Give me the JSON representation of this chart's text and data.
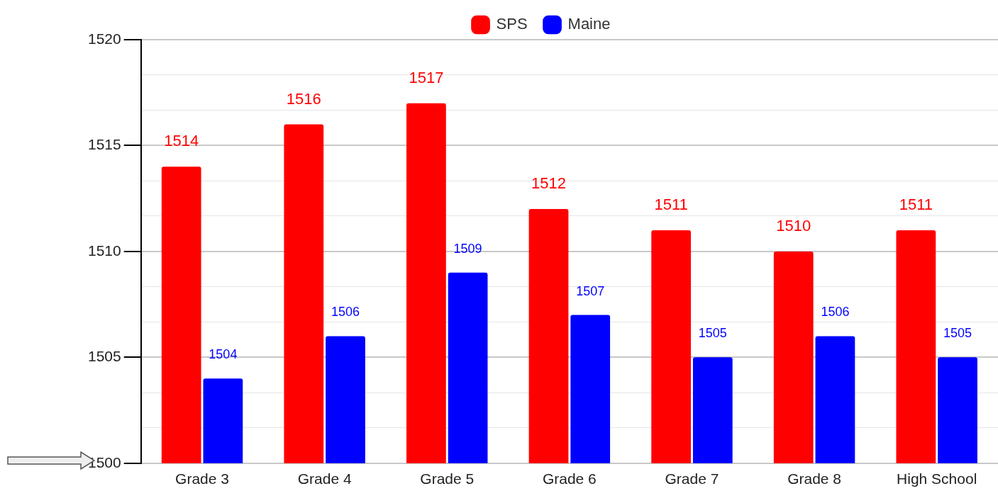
{
  "chart_data": {
    "type": "bar",
    "categories": [
      "Grade 3",
      "Grade 4",
      "Grade 5",
      "Grade 6",
      "Grade 7",
      "Grade 8",
      "High School"
    ],
    "series": [
      {
        "name": "SPS",
        "color": "#ff0000",
        "values": [
          1514,
          1516,
          1517,
          1512,
          1511,
          1510,
          1511
        ]
      },
      {
        "name": "Maine",
        "color": "#0000ff",
        "values": [
          1504,
          1506,
          1509,
          1507,
          1505,
          1506,
          1505
        ]
      }
    ],
    "ylim": [
      1500,
      1520
    ],
    "yticks": [
      1500,
      {
        "value": 1501.67,
        "label": null
      },
      {
        "value": 1503.33,
        "label": null
      },
      1505,
      {
        "value": 1506.67,
        "label": null
      },
      {
        "value": 1508.33,
        "label": null
      },
      1510,
      {
        "value": 1511.67,
        "label": null
      },
      {
        "value": 1513.33,
        "label": null
      },
      1515,
      {
        "value": 1516.67,
        "label": null
      },
      {
        "value": 1518.33,
        "label": null
      },
      1520
    ],
    "grid": "y",
    "legend": "top",
    "data_labels": true
  }
}
